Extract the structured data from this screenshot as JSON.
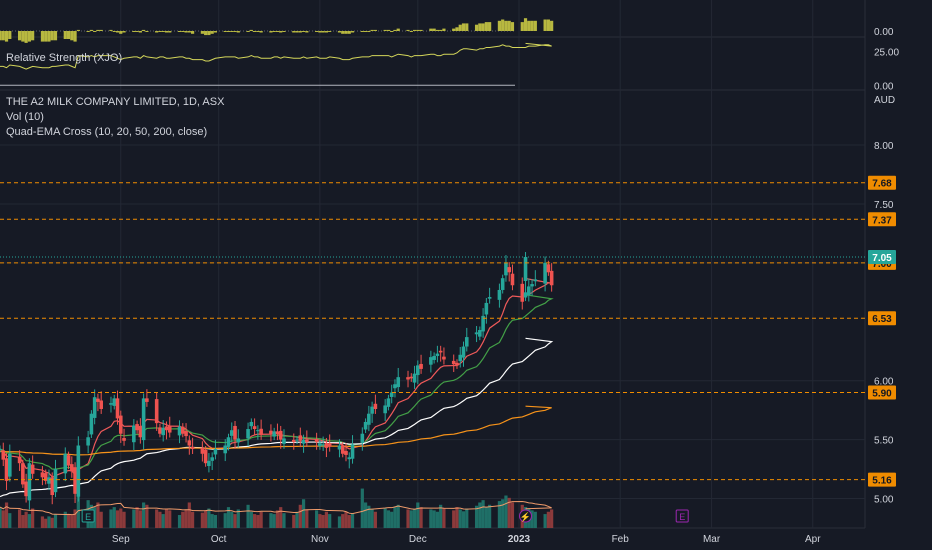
{
  "colors": {
    "background": "#161a25",
    "grid": "#232834",
    "text": "#d1d4dc",
    "up": "#26a69a",
    "down": "#ef5350",
    "volume_up": "#1f6f67",
    "volume_down": "#8c3a3b",
    "ema10": "#f05a5a",
    "ema20": "#43a047",
    "ema50": "#ffffff",
    "ema200": "#f7931a",
    "rs_line": "#d4d65a",
    "rs_hist": "#b8b840",
    "level_line": "#f08c00",
    "price_tag": "#26a69a"
  },
  "top_panel": {
    "axis_label": "0.00"
  },
  "rs_panel": {
    "title": "Relative Strength (XJO)",
    "axis_labels": [
      "25.00",
      "0.00"
    ]
  },
  "main_legend": {
    "symbol": "THE A2 MILK COMPANY LIMITED, 1D, ASX",
    "volume": "Vol (10)",
    "ema": "Quad-EMA Cross (10, 20, 50, 200, close)"
  },
  "price_axis": {
    "currency": "AUD",
    "ticks": [
      "8.00",
      "7.50",
      "7.00",
      "6.00",
      "5.50",
      "5.00"
    ]
  },
  "levels": [
    "7.68",
    "7.37",
    "7.00",
    "6.53",
    "5.90",
    "5.16"
  ],
  "last_price": "7.05",
  "time_axis": [
    "Sep",
    "Oct",
    "Nov",
    "Dec",
    "2023",
    "Feb",
    "Mar",
    "Apr"
  ],
  "event_markers": [
    {
      "label": "E",
      "color": "#26a69a",
      "date": "2022-08-22"
    },
    {
      "label": "⚡",
      "color": "#9c27b0",
      "date": "2023-01-03"
    },
    {
      "label": "E",
      "color": "#9c27b0",
      "date": "2023-02-20"
    }
  ],
  "chart_data": {
    "type": "candlestick",
    "title": "THE A2 MILK COMPANY LIMITED, 1D, ASX",
    "ylabel": "AUD",
    "ylim": [
      4.75,
      8.45
    ],
    "x_range": [
      "2022-07-26",
      "2023-04-17"
    ],
    "price_ticks": [
      5.0,
      5.5,
      6.0,
      7.0,
      7.5,
      8.0
    ],
    "horizontal_levels": [
      7.68,
      7.37,
      7.0,
      6.53,
      5.9,
      5.16
    ],
    "last_price": 7.05,
    "start_date": "2022-07-26",
    "end_date": "2023-01-03",
    "closes": [
      5.42,
      5.33,
      5.15,
      5.38,
      5.3,
      5.12,
      5.02,
      5.3,
      5.21,
      5.18,
      5.15,
      5.18,
      5.03,
      5.25,
      5.38,
      5.28,
      5.23,
      5.04,
      5.45,
      5.52,
      5.72,
      5.86,
      5.82,
      5.76,
      5.81,
      5.85,
      5.68,
      5.55,
      5.49,
      5.62,
      5.58,
      5.52,
      5.85,
      5.82,
      5.64,
      5.55,
      5.6,
      5.58,
      5.56,
      5.61,
      5.55,
      5.53,
      5.45,
      5.42,
      5.38,
      5.3,
      5.32,
      5.35,
      5.42,
      5.45,
      5.52,
      5.58,
      5.5,
      5.51,
      5.59,
      5.65,
      5.59,
      5.58,
      5.54,
      5.55,
      5.57,
      5.55,
      5.5,
      5.51,
      5.48,
      5.5,
      5.49,
      5.5,
      5.48,
      5.48,
      5.47,
      5.46,
      5.43,
      5.44,
      5.45,
      5.38,
      5.37,
      5.35,
      5.46,
      5.55,
      5.65,
      5.72,
      5.78,
      5.76,
      5.79,
      5.85,
      5.9,
      5.97,
      6.03,
      6.01,
      6.02,
      6.06,
      6.13,
      6.1,
      6.2,
      6.21,
      6.23,
      6.24,
      6.18,
      6.14,
      6.13,
      6.22,
      6.29,
      6.37,
      6.41,
      6.43,
      6.55,
      6.66,
      6.71,
      6.77,
      6.87,
      7.0,
      6.92,
      6.81,
      6.67,
      6.75,
      6.8,
      6.82,
      6.86,
      7.0,
      6.92,
      6.81,
      7.05
    ],
    "volume_ylim": [
      0,
      1.25
    ],
    "volumes": [
      0.45,
      0.38,
      0.55,
      0.32,
      0.4,
      0.28,
      0.35,
      0.3,
      0.42,
      0.25,
      0.2,
      0.25,
      0.22,
      0.3,
      0.35,
      0.3,
      0.28,
      0.4,
      1.2,
      0.6,
      0.5,
      0.45,
      0.55,
      0.35,
      0.4,
      0.45,
      0.38,
      0.42,
      0.35,
      0.4,
      0.45,
      0.38,
      0.55,
      0.5,
      0.4,
      0.35,
      0.3,
      0.42,
      0.38,
      0.28,
      0.35,
      0.4,
      0.55,
      0.35,
      0.33,
      0.38,
      0.42,
      0.3,
      0.28,
      0.32,
      0.45,
      0.35,
      0.3,
      0.4,
      0.5,
      0.35,
      0.3,
      0.28,
      0.35,
      0.32,
      0.3,
      0.38,
      0.45,
      0.32,
      0.28,
      0.35,
      0.5,
      0.62,
      0.4,
      0.38,
      0.3,
      0.28,
      0.35,
      0.3,
      0.25,
      0.3,
      0.35,
      0.28,
      0.32,
      0.85,
      0.55,
      0.48,
      0.4,
      0.35,
      0.42,
      0.38,
      0.35,
      0.45,
      0.5,
      0.4,
      0.38,
      0.42,
      0.55,
      0.45,
      0.4,
      0.38,
      0.35,
      0.5,
      0.42,
      0.38,
      0.45,
      0.4,
      0.36,
      0.42,
      0.48,
      0.55,
      0.6,
      0.45,
      0.5,
      0.58,
      0.62,
      0.7,
      0.65,
      0.55,
      0.5,
      0.45,
      0.42,
      0.38,
      0.35,
      0.3,
      0.35,
      0.4,
      0.45
    ],
    "series": [
      {
        "name": "Vol (10)",
        "role": "volume_moving_average"
      },
      {
        "name": "EMA 10",
        "period": 10
      },
      {
        "name": "EMA 20",
        "period": 20
      },
      {
        "name": "EMA 50",
        "period": 50
      },
      {
        "name": "EMA 200",
        "period": 200
      }
    ],
    "rs_ylim": [
      -2,
      35
    ],
    "rs_ticks": [
      0,
      25
    ],
    "rs_values": [
      14,
      14,
      13,
      15,
      14,
      13,
      12,
      13,
      14,
      13,
      13,
      13,
      14,
      14,
      15,
      15,
      14,
      13,
      22,
      21,
      22,
      21,
      22,
      22,
      22,
      21,
      20,
      19,
      20,
      21,
      21,
      20,
      22,
      21,
      20,
      21,
      21,
      20,
      20,
      21,
      21,
      20,
      20,
      19,
      19,
      18,
      18,
      19,
      20,
      21,
      21,
      21,
      21,
      20,
      21,
      22,
      21,
      21,
      20,
      20,
      21,
      21,
      20,
      21,
      20,
      20,
      20,
      21,
      20,
      21,
      20,
      20,
      20,
      21,
      20,
      19,
      19,
      19,
      20,
      21,
      21,
      21,
      22,
      22,
      22,
      22,
      21,
      22,
      23,
      22,
      21,
      22,
      22,
      22,
      23,
      23,
      22,
      22,
      23,
      23,
      24,
      26,
      27,
      27,
      26,
      27,
      27,
      28,
      28,
      29,
      30,
      29,
      29,
      28,
      28,
      28,
      29,
      29,
      29,
      30,
      30,
      29,
      31
    ]
  }
}
